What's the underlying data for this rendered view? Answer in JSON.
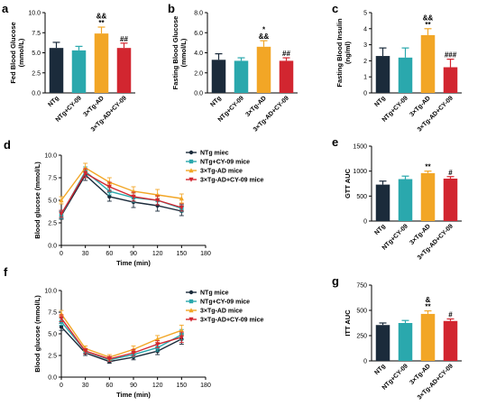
{
  "colors": {
    "NTg": "#1b2b3b",
    "NTg+CY-09": "#2aa8ad",
    "3×Tg-AD": "#f2a626",
    "3×Tg-AD+CY-09": "#d22630",
    "axis": "#000000"
  },
  "chart_data": [
    {
      "panel": "a",
      "type": "bar",
      "ylabel": "Fed Blood Glucose\n(mmol/L)",
      "ylim": [
        0,
        10
      ],
      "yticks": [
        "0.0",
        "2.5",
        "5.0",
        "7.5",
        "10.0"
      ],
      "categories": [
        "NTg",
        "NTg+CY-09",
        "3×Tg-AD",
        "3×Tg-AD+CY-09"
      ],
      "values": [
        5.6,
        5.3,
        7.4,
        5.6
      ],
      "errors": [
        0.7,
        0.5,
        0.8,
        0.6
      ],
      "annotations": [
        "",
        "",
        "&&\n**",
        "##"
      ]
    },
    {
      "panel": "b",
      "type": "bar",
      "ylabel": "Fasting Blood Glucose\n(mmol/L)",
      "ylim": [
        0,
        8
      ],
      "yticks": [
        "0.0",
        "2.0",
        "4.0",
        "6.0",
        "8.0"
      ],
      "categories": [
        "NTg",
        "NTg+CY-09",
        "3×Tg-AD",
        "3×Tg-AD+CY-09"
      ],
      "values": [
        3.3,
        3.2,
        4.6,
        3.2
      ],
      "errors": [
        0.6,
        0.3,
        0.6,
        0.3
      ],
      "annotations": [
        "",
        "",
        "*\n&&",
        "##"
      ]
    },
    {
      "panel": "c",
      "type": "bar",
      "ylabel": "Fasting Blood Insulin\n(ng/ml)",
      "ylim": [
        0,
        5
      ],
      "yticks": [
        "0",
        "1",
        "2",
        "3",
        "4",
        "5"
      ],
      "categories": [
        "NTg",
        "NTg+CY-09",
        "3×Tg-AD",
        "3×Tg-AD+CY-09"
      ],
      "values": [
        2.3,
        2.2,
        3.6,
        1.6
      ],
      "errors": [
        0.5,
        0.6,
        0.4,
        0.5
      ],
      "annotations": [
        "",
        "",
        "&&\n**",
        "###"
      ]
    },
    {
      "panel": "d",
      "type": "line",
      "ylabel": "Blood glucose (mmol/L)",
      "xlabel": "Time (min)",
      "xlim": [
        0,
        180
      ],
      "xticks": [
        "0",
        "30",
        "60",
        "90",
        "120",
        "150",
        "180"
      ],
      "ylim": [
        0,
        10
      ],
      "yticks": [
        "0.0",
        "2.5",
        "5.0",
        "7.5",
        "10.0"
      ],
      "x": [
        0,
        30,
        60,
        90,
        120,
        150
      ],
      "legend": "top-right",
      "series": [
        {
          "name": "NTg miec",
          "key": "NTg",
          "values": [
            3.3,
            7.8,
            5.4,
            4.8,
            4.4,
            3.8
          ],
          "errors": [
            0.4,
            0.6,
            0.5,
            0.6,
            0.6,
            0.5
          ]
        },
        {
          "name": "NTg+CY-09 mice",
          "key": "NTg+CY-09",
          "values": [
            3.4,
            8.2,
            6.0,
            5.3,
            5.0,
            4.1
          ],
          "errors": [
            0.4,
            0.5,
            0.4,
            0.5,
            0.5,
            0.4
          ]
        },
        {
          "name": "3×Tg-AD mice",
          "key": "3×Tg-AD",
          "values": [
            5.0,
            8.6,
            7.0,
            6.0,
            5.6,
            5.2
          ],
          "errors": [
            0.4,
            0.5,
            0.5,
            0.5,
            0.6,
            0.5
          ]
        },
        {
          "name": "3×Tg-AD+CY-09 mice",
          "key": "3×Tg-AD+CY-09",
          "values": [
            3.5,
            8.0,
            6.5,
            5.4,
            5.0,
            4.2
          ],
          "errors": [
            0.4,
            0.5,
            0.5,
            0.5,
            0.5,
            0.4
          ]
        }
      ]
    },
    {
      "panel": "e",
      "type": "bar",
      "ylabel": "GTT AUC",
      "ylim": [
        0,
        1500
      ],
      "yticks": [
        "0",
        "500",
        "1000",
        "1500"
      ],
      "categories": [
        "NTg",
        "NTg+CY-09",
        "3×Tg-AD",
        "3×Tg-AD+CY-09"
      ],
      "values": [
        730,
        840,
        960,
        850
      ],
      "errors": [
        70,
        60,
        40,
        40
      ],
      "annotations": [
        "",
        "",
        "**",
        "#"
      ]
    },
    {
      "panel": "f",
      "type": "line",
      "ylabel": "Blood glucose (mmol/L)",
      "xlabel": "Time (min)",
      "xlim": [
        0,
        180
      ],
      "xticks": [
        "0",
        "30",
        "60",
        "90",
        "120",
        "150",
        "180"
      ],
      "ylim": [
        0,
        10
      ],
      "yticks": [
        "0.0",
        "2.5",
        "5.0",
        "7.5",
        "10.0"
      ],
      "x": [
        0,
        30,
        60,
        90,
        120,
        150
      ],
      "legend": "top-right",
      "series": [
        {
          "name": "NTg mice",
          "key": "NTg",
          "values": [
            5.8,
            2.8,
            1.8,
            2.3,
            3.0,
            4.4
          ],
          "errors": [
            0.4,
            0.3,
            0.2,
            0.3,
            0.4,
            0.6
          ]
        },
        {
          "name": "NTg+CY-09 mice",
          "key": "NTg+CY-09",
          "values": [
            6.4,
            3.0,
            2.0,
            2.6,
            3.4,
            4.9
          ],
          "errors": [
            0.4,
            0.3,
            0.2,
            0.3,
            0.4,
            0.6
          ]
        },
        {
          "name": "3×Tg-AD mice",
          "key": "3×Tg-AD",
          "values": [
            7.3,
            3.3,
            2.3,
            3.2,
            4.4,
            5.4
          ],
          "errors": [
            0.4,
            0.3,
            0.3,
            0.4,
            0.4,
            0.6
          ]
        },
        {
          "name": "3×Tg-AD+CY-09 mice",
          "key": "3×Tg-AD+CY-09",
          "values": [
            6.8,
            3.0,
            2.1,
            2.8,
            3.8,
            4.6
          ],
          "errors": [
            0.4,
            0.3,
            0.3,
            0.4,
            0.4,
            0.6
          ]
        }
      ]
    },
    {
      "panel": "g",
      "type": "bar",
      "ylabel": "ITT AUC",
      "ylim": [
        0,
        750
      ],
      "yticks": [
        "0",
        "250",
        "500",
        "750"
      ],
      "categories": [
        "NTg",
        "NTg+CY-09",
        "3×Tg-AD",
        "3×Tg-AD+CY-09"
      ],
      "values": [
        355,
        375,
        465,
        395
      ],
      "errors": [
        20,
        25,
        30,
        20
      ],
      "annotations": [
        "",
        "",
        "&\n**",
        "#"
      ]
    }
  ]
}
